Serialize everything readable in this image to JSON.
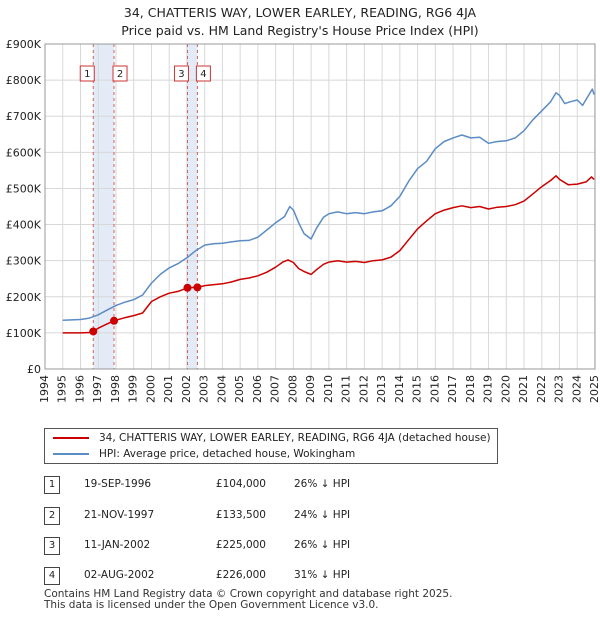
{
  "title_line1": "34, CHATTERIS WAY, LOWER EARLEY, READING, RG6 4JA",
  "title_line2": "Price paid vs. HM Land Registry's House Price Index (HPI)",
  "chart_data": {
    "type": "line",
    "title": "34, CHATTERIS WAY, LOWER EARLEY, READING, RG6 4JA — Price paid vs. HM Land Registry's House Price Index (HPI)",
    "xlabel": "",
    "ylabel": "",
    "xlim": [
      1994,
      2025
    ],
    "ylim": [
      0,
      900000
    ],
    "y_ticks": [
      0,
      100000,
      200000,
      300000,
      400000,
      500000,
      600000,
      700000,
      800000,
      900000
    ],
    "y_tick_labels": [
      "£0",
      "£100K",
      "£200K",
      "£300K",
      "£400K",
      "£500K",
      "£600K",
      "£700K",
      "£800K",
      "£900K"
    ],
    "x_ticks": [
      1994,
      1995,
      1996,
      1997,
      1998,
      1999,
      2000,
      2001,
      2002,
      2003,
      2004,
      2005,
      2006,
      2007,
      2008,
      2009,
      2010,
      2011,
      2012,
      2013,
      2014,
      2015,
      2016,
      2017,
      2018,
      2019,
      2020,
      2021,
      2022,
      2023,
      2024,
      2025
    ],
    "grid": true,
    "legend_position": "below",
    "series": [
      {
        "name": "34, CHATTERIS WAY, LOWER EARLEY, READING, RG6 4JA (detached house)",
        "color": "#cc0000",
        "x": [
          1995.0,
          1995.5,
          1996.0,
          1996.5,
          1996.72,
          1997.0,
          1997.5,
          1997.89,
          1998.5,
          1999.0,
          1999.5,
          2000.0,
          2000.5,
          2001.0,
          2001.5,
          2002.03,
          2002.59,
          2003.0,
          2004.0,
          2004.5,
          2005.0,
          2005.5,
          2006.0,
          2006.5,
          2007.0,
          2007.4,
          2007.7,
          2008.0,
          2008.3,
          2008.6,
          2009.0,
          2009.3,
          2009.7,
          2010.0,
          2010.5,
          2011.0,
          2011.5,
          2012.0,
          2012.5,
          2013.0,
          2013.5,
          2014.0,
          2014.5,
          2015.0,
          2015.5,
          2016.0,
          2016.5,
          2017.0,
          2017.5,
          2018.0,
          2018.5,
          2019.0,
          2019.5,
          2020.0,
          2020.5,
          2021.0,
          2021.5,
          2022.0,
          2022.5,
          2022.8,
          2023.0,
          2023.5,
          2024.0,
          2024.5,
          2024.8,
          2024.95
        ],
        "values": [
          100000,
          100000,
          100000,
          101000,
          104000,
          113000,
          125000,
          133500,
          142000,
          148000,
          155000,
          187000,
          200000,
          210000,
          215000,
          225000,
          226000,
          231000,
          236000,
          241000,
          248000,
          252000,
          258000,
          268000,
          282000,
          296000,
          302000,
          295000,
          278000,
          270000,
          262000,
          275000,
          290000,
          296000,
          300000,
          296000,
          298000,
          295000,
          300000,
          302000,
          310000,
          328000,
          358000,
          388000,
          410000,
          430000,
          440000,
          447000,
          452000,
          447000,
          450000,
          443000,
          448000,
          450000,
          455000,
          465000,
          485000,
          505000,
          522000,
          535000,
          525000,
          510000,
          512000,
          518000,
          532000,
          525000
        ]
      },
      {
        "name": "HPI: Average price, detached house, Wokingham",
        "color": "#5b8cc5",
        "x": [
          1995.0,
          1995.5,
          1996.0,
          1996.5,
          1997.0,
          1997.5,
          1998.0,
          1998.5,
          1999.0,
          1999.5,
          2000.0,
          2000.5,
          2001.0,
          2001.5,
          2002.0,
          2002.5,
          2003.0,
          2003.5,
          2004.0,
          2004.5,
          2005.0,
          2005.5,
          2006.0,
          2006.5,
          2007.0,
          2007.5,
          2007.8,
          2008.0,
          2008.3,
          2008.6,
          2009.0,
          2009.3,
          2009.7,
          2010.0,
          2010.5,
          2011.0,
          2011.5,
          2012.0,
          2012.5,
          2013.0,
          2013.5,
          2014.0,
          2014.5,
          2015.0,
          2015.5,
          2016.0,
          2016.5,
          2017.0,
          2017.5,
          2018.0,
          2018.5,
          2019.0,
          2019.5,
          2020.0,
          2020.5,
          2021.0,
          2021.5,
          2022.0,
          2022.5,
          2022.8,
          2023.0,
          2023.3,
          2023.6,
          2024.0,
          2024.3,
          2024.6,
          2024.85,
          2024.95
        ],
        "values": [
          135000,
          136000,
          137000,
          141000,
          150000,
          163000,
          176000,
          185000,
          192000,
          205000,
          238000,
          262000,
          280000,
          292000,
          308000,
          328000,
          343000,
          347000,
          348000,
          352000,
          355000,
          356000,
          365000,
          385000,
          405000,
          422000,
          450000,
          440000,
          405000,
          375000,
          360000,
          390000,
          420000,
          430000,
          435000,
          430000,
          433000,
          430000,
          435000,
          438000,
          452000,
          478000,
          520000,
          555000,
          575000,
          610000,
          630000,
          640000,
          648000,
          640000,
          642000,
          625000,
          630000,
          632000,
          640000,
          660000,
          690000,
          715000,
          740000,
          765000,
          758000,
          735000,
          740000,
          745000,
          730000,
          755000,
          775000,
          760000
        ]
      }
    ],
    "sales": [
      {
        "label": "1",
        "x": 1996.72,
        "value": 104000
      },
      {
        "label": "2",
        "x": 1997.89,
        "value": 133500
      },
      {
        "label": "3",
        "x": 2002.03,
        "value": 225000
      },
      {
        "label": "4",
        "x": 2002.59,
        "value": 226000
      }
    ],
    "shaded_periods": [
      {
        "start": 1996.72,
        "end": 1997.89
      },
      {
        "start": 2002.03,
        "end": 2002.59
      }
    ]
  },
  "legend": {
    "property_label": "34, CHATTERIS WAY, LOWER EARLEY, READING, RG6 4JA (detached house)",
    "hpi_label": "HPI: Average price, detached house, Wokingham"
  },
  "transactions": [
    {
      "num": "1",
      "date": "19-SEP-1996",
      "price": "£104,000",
      "hpi": "26% ↓ HPI"
    },
    {
      "num": "2",
      "date": "21-NOV-1997",
      "price": "£133,500",
      "hpi": "24% ↓ HPI"
    },
    {
      "num": "3",
      "date": "11-JAN-2002",
      "price": "£225,000",
      "hpi": "26% ↓ HPI"
    },
    {
      "num": "4",
      "date": "02-AUG-2002",
      "price": "£226,000",
      "hpi": "31% ↓ HPI"
    }
  ],
  "footer": {
    "line1": "Contains HM Land Registry data © Crown copyright and database right 2025.",
    "line2": "This data is licensed under the Open Government Licence v3.0."
  }
}
